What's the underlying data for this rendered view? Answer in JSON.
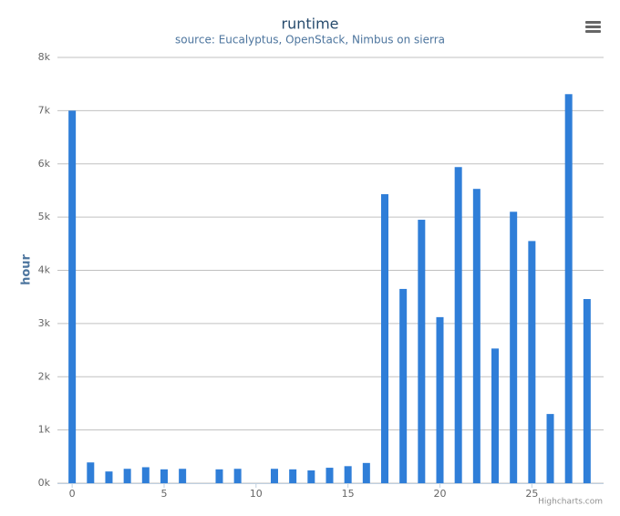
{
  "chart_data": {
    "type": "bar",
    "title": "runtime",
    "subtitle": "source: Eucalyptus, OpenStack, Nimbus on sierra",
    "y_label": "hour",
    "credits": "Highcharts.com",
    "color": "#2f7ed8",
    "x": [
      0,
      1,
      2,
      3,
      4,
      5,
      6,
      7,
      8,
      9,
      10,
      11,
      12,
      13,
      14,
      15,
      16,
      17,
      18,
      19,
      20,
      21,
      22,
      23,
      24,
      25,
      26,
      27,
      28
    ],
    "values": [
      7000,
      390,
      220,
      270,
      300,
      260,
      270,
      0,
      260,
      270,
      0,
      270,
      260,
      240,
      290,
      320,
      380,
      5430,
      3650,
      4950,
      3120,
      5940,
      5530,
      2530,
      5100,
      4550,
      1300,
      7310,
      3460
    ],
    "xlim": [
      -0.8,
      28.9
    ],
    "xticks": [
      0,
      5,
      10,
      15,
      20,
      25
    ],
    "ylim": [
      0,
      8000
    ],
    "yticks": [
      {
        "value": 0,
        "label": "0k"
      },
      {
        "value": 1000,
        "label": "1k"
      },
      {
        "value": 2000,
        "label": "2k"
      },
      {
        "value": 3000,
        "label": "3k"
      },
      {
        "value": 4000,
        "label": "4k"
      },
      {
        "value": 5000,
        "label": "5k"
      },
      {
        "value": 6000,
        "label": "6k"
      },
      {
        "value": 7000,
        "label": "7k"
      },
      {
        "value": 8000,
        "label": "8k"
      }
    ],
    "grid": true
  }
}
